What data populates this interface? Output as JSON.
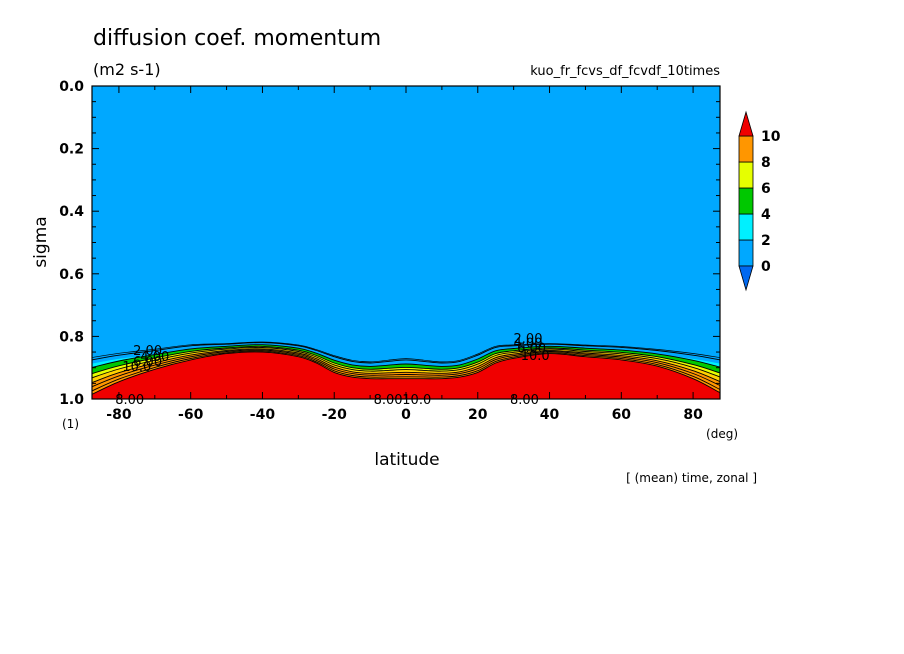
{
  "chart_data": {
    "type": "contour",
    "title": "diffusion coef. momentum",
    "units": "(m2 s-1)",
    "run_name": "kuo_fr_fcvs_df_fcvdf_10times",
    "xlabel": "latitude",
    "ylabel": "sigma",
    "x_unit": "(deg)",
    "y_unit": "(1)",
    "footnote": "[ (mean) time, zonal ]",
    "xlim": [
      -87.5,
      87.5
    ],
    "ylim": [
      1.0,
      0.0
    ],
    "x_ticks": [
      -80,
      -60,
      -40,
      -20,
      0,
      20,
      40,
      60,
      80
    ],
    "x_tick_labels": [
      "-80",
      "-60",
      "-40",
      "-20",
      "0",
      "20",
      "40",
      "60",
      "80"
    ],
    "y_ticks": [
      0.0,
      0.2,
      0.4,
      0.6,
      0.8,
      1.0
    ],
    "y_tick_labels": [
      "0.0",
      "0.2",
      "0.4",
      "0.6",
      "0.8",
      "1.0"
    ],
    "colorbar": {
      "levels": [
        0,
        2,
        4,
        6,
        8,
        10
      ],
      "labels": [
        "0",
        "2",
        "4",
        "6",
        "8",
        "10"
      ],
      "colors": [
        "#0068f0",
        "#00a8ff",
        "#00f0ff",
        "#00c800",
        "#e6ff00",
        "#ffd200",
        "#ff9600",
        "#f00000"
      ]
    },
    "regions": {
      "lat": [
        -87.5,
        -80,
        -70,
        -60,
        -50,
        -40,
        -30,
        -25,
        -20,
        -15,
        -10,
        -5,
        0,
        5,
        10,
        15,
        20,
        25,
        30,
        40,
        50,
        60,
        70,
        80,
        87.5
      ],
      "sigma_top_above10": [
        0.985,
        0.945,
        0.905,
        0.875,
        0.855,
        0.85,
        0.865,
        0.885,
        0.915,
        0.93,
        0.935,
        0.935,
        0.935,
        0.935,
        0.935,
        0.93,
        0.915,
        0.885,
        0.87,
        0.855,
        0.865,
        0.875,
        0.895,
        0.935,
        0.98
      ],
      "sigma_top_above0": [
        0.875,
        0.86,
        0.845,
        0.83,
        0.825,
        0.82,
        0.83,
        0.845,
        0.865,
        0.88,
        0.885,
        0.88,
        0.875,
        0.88,
        0.885,
        0.88,
        0.86,
        0.835,
        0.83,
        0.825,
        0.83,
        0.835,
        0.845,
        0.86,
        0.875
      ]
    },
    "contour_labels": [
      {
        "text": "2.00",
        "lat": -72,
        "sigma": 0.843
      },
      {
        "text": "4.00",
        "lat": -70,
        "sigma": 0.862
      },
      {
        "text": "6.00",
        "lat": -72,
        "sigma": 0.878
      },
      {
        "text": "10.0",
        "lat": -75,
        "sigma": 0.895
      },
      {
        "text": "8.00",
        "lat": -77,
        "sigma": 1.0
      },
      {
        "text": "2.00",
        "lat": 34,
        "sigma": 0.805
      },
      {
        "text": "4.00",
        "lat": 34,
        "sigma": 0.82
      },
      {
        "text": "6.00",
        "lat": 35,
        "sigma": 0.835
      },
      {
        "text": "10.0",
        "lat": 36,
        "sigma": 0.86
      },
      {
        "text": "8.00",
        "lat": -5,
        "sigma": 1.0
      },
      {
        "text": "10.0",
        "lat": 3,
        "sigma": 1.0
      },
      {
        "text": "8.00",
        "lat": 33,
        "sigma": 1.0
      }
    ],
    "grid": false
  }
}
